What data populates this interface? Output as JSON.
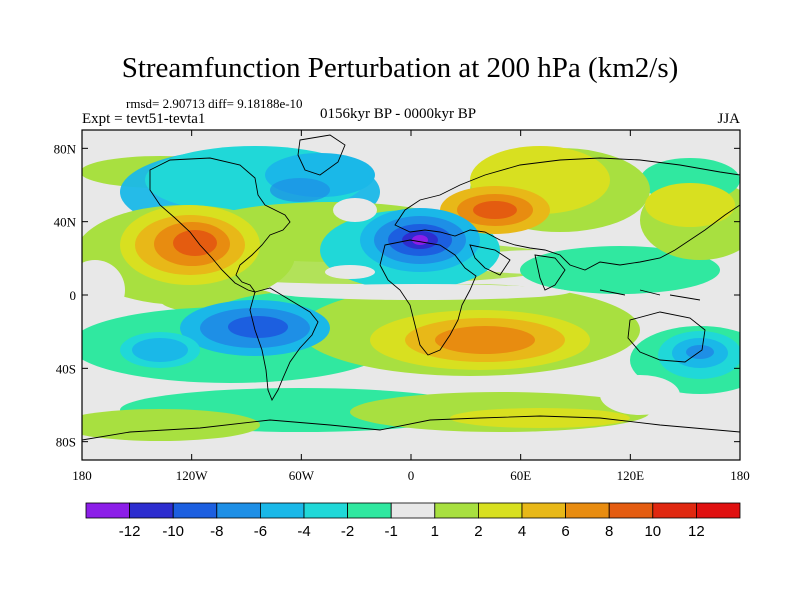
{
  "header": {
    "title": "Streamfunction Perturbation at 200 hPa (km2/s)",
    "stats": "rmsd= 2.90713 diff= 9.18188e-10",
    "expt": "Expt = tevt51-tevta1",
    "period": "0156kyr BP - 0000kyr BP",
    "season": "JJA"
  },
  "chart_data": {
    "type": "heatmap",
    "title": "Streamfunction Perturbation at 200 hPa (km2/s)",
    "xlabel": "",
    "ylabel": "",
    "xlim": [
      -180,
      180
    ],
    "ylim": [
      -90,
      90
    ],
    "x_ticks": [
      {
        "value": -180,
        "label": "180"
      },
      {
        "value": -120,
        "label": "120W"
      },
      {
        "value": -60,
        "label": "60W"
      },
      {
        "value": 0,
        "label": "0"
      },
      {
        "value": 60,
        "label": "60E"
      },
      {
        "value": 120,
        "label": "120E"
      },
      {
        "value": 180,
        "label": "180"
      }
    ],
    "y_ticks": [
      {
        "value": 80,
        "label": "80N"
      },
      {
        "value": 40,
        "label": "40N"
      },
      {
        "value": 0,
        "label": "0"
      },
      {
        "value": -40,
        "label": "40S"
      },
      {
        "value": -80,
        "label": "80S"
      }
    ],
    "colorbar": {
      "labels": [
        "-12",
        "-10",
        "-8",
        "-6",
        "-4",
        "-2",
        "-1",
        "1",
        "2",
        "4",
        "6",
        "8",
        "10",
        "12"
      ],
      "colors": [
        "#8c1ee8",
        "#2d2dcf",
        "#1c5fe0",
        "#1e8fe6",
        "#1ab8e8",
        "#20d8d8",
        "#30e8a0",
        "#e8e8e8",
        "#a8e040",
        "#d8e020",
        "#e8b818",
        "#e88c10",
        "#e45c10",
        "#e02810",
        "#e01010"
      ]
    },
    "features": [
      {
        "name": "mediterranean-low",
        "lon": 10,
        "lat": 30,
        "value": -12
      },
      {
        "name": "south-america-low",
        "lon": -80,
        "lat": -17,
        "value": -8
      },
      {
        "name": "north-america-high",
        "lon": -120,
        "lat": 27,
        "value": 10
      },
      {
        "name": "arabia-high",
        "lon": 48,
        "lat": 48,
        "value": 10
      },
      {
        "name": "southern-africa-high",
        "lon": 35,
        "lat": -22,
        "value": 8
      },
      {
        "name": "australia-low",
        "lon": 155,
        "lat": -32,
        "value": -6
      },
      {
        "name": "south-pacific-low",
        "lon": -150,
        "lat": -28,
        "value": -6
      },
      {
        "name": "north-pacific-low",
        "lon": -75,
        "lat": 65,
        "value": -4
      },
      {
        "name": "eurasia-high",
        "lon": 55,
        "lat": 60,
        "value": 4
      }
    ]
  }
}
